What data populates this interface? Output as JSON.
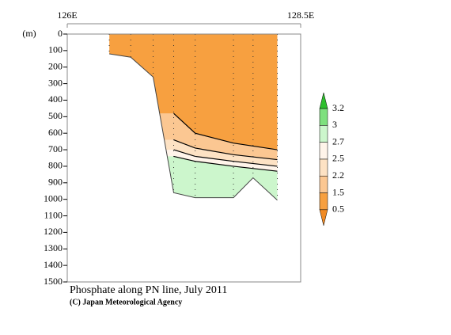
{
  "chart_data": {
    "type": "section",
    "title": "Phosphate along PN line, July 2011",
    "credit": "(C) Japan Meteorological Agency",
    "y_label": "(m)",
    "xlim": [
      126,
      128.5
    ],
    "xticks": [
      {
        "value": 126,
        "label": "126E"
      },
      {
        "value": 128.5,
        "label": "128.5E"
      }
    ],
    "ylim": [
      0,
      1500
    ],
    "yticks": [
      0,
      100,
      200,
      300,
      400,
      500,
      600,
      700,
      800,
      900,
      1000,
      1100,
      1200,
      1300,
      1400,
      1500
    ],
    "stations": {
      "lon": [
        126.45,
        126.68,
        126.92,
        127.14,
        127.37,
        127.78,
        127.99,
        128.25
      ],
      "bottom": [
        120,
        140,
        260,
        960,
        990,
        990,
        870,
        1005
      ]
    },
    "isolines": [
      {
        "level": 1.5,
        "lon": [
          127.14,
          127.37,
          127.78,
          128.25
        ],
        "depth": [
          480,
          600,
          660,
          700
        ]
      },
      {
        "level": 2.2,
        "lon": [
          127.14,
          127.37,
          127.78,
          128.25
        ],
        "depth": [
          640,
          690,
          730,
          760
        ]
      },
      {
        "level": 2.5,
        "lon": [
          127.14,
          127.37,
          127.78,
          128.25
        ],
        "depth": [
          700,
          740,
          770,
          800
        ]
      },
      {
        "level": 2.7,
        "lon": [
          127.14,
          127.37,
          127.78,
          128.25
        ],
        "depth": [
          740,
          770,
          800,
          830
        ]
      }
    ],
    "colorbar": {
      "levels": [
        0.5,
        1.5,
        2.2,
        2.5,
        2.7,
        3.0,
        3.2
      ],
      "colors": [
        "#f08a24",
        "#f7a040",
        "#fbc792",
        "#fde2c4",
        "#fff4ea",
        "#ccf6cc",
        "#7ee07e",
        "#2ebf2e"
      ]
    }
  }
}
